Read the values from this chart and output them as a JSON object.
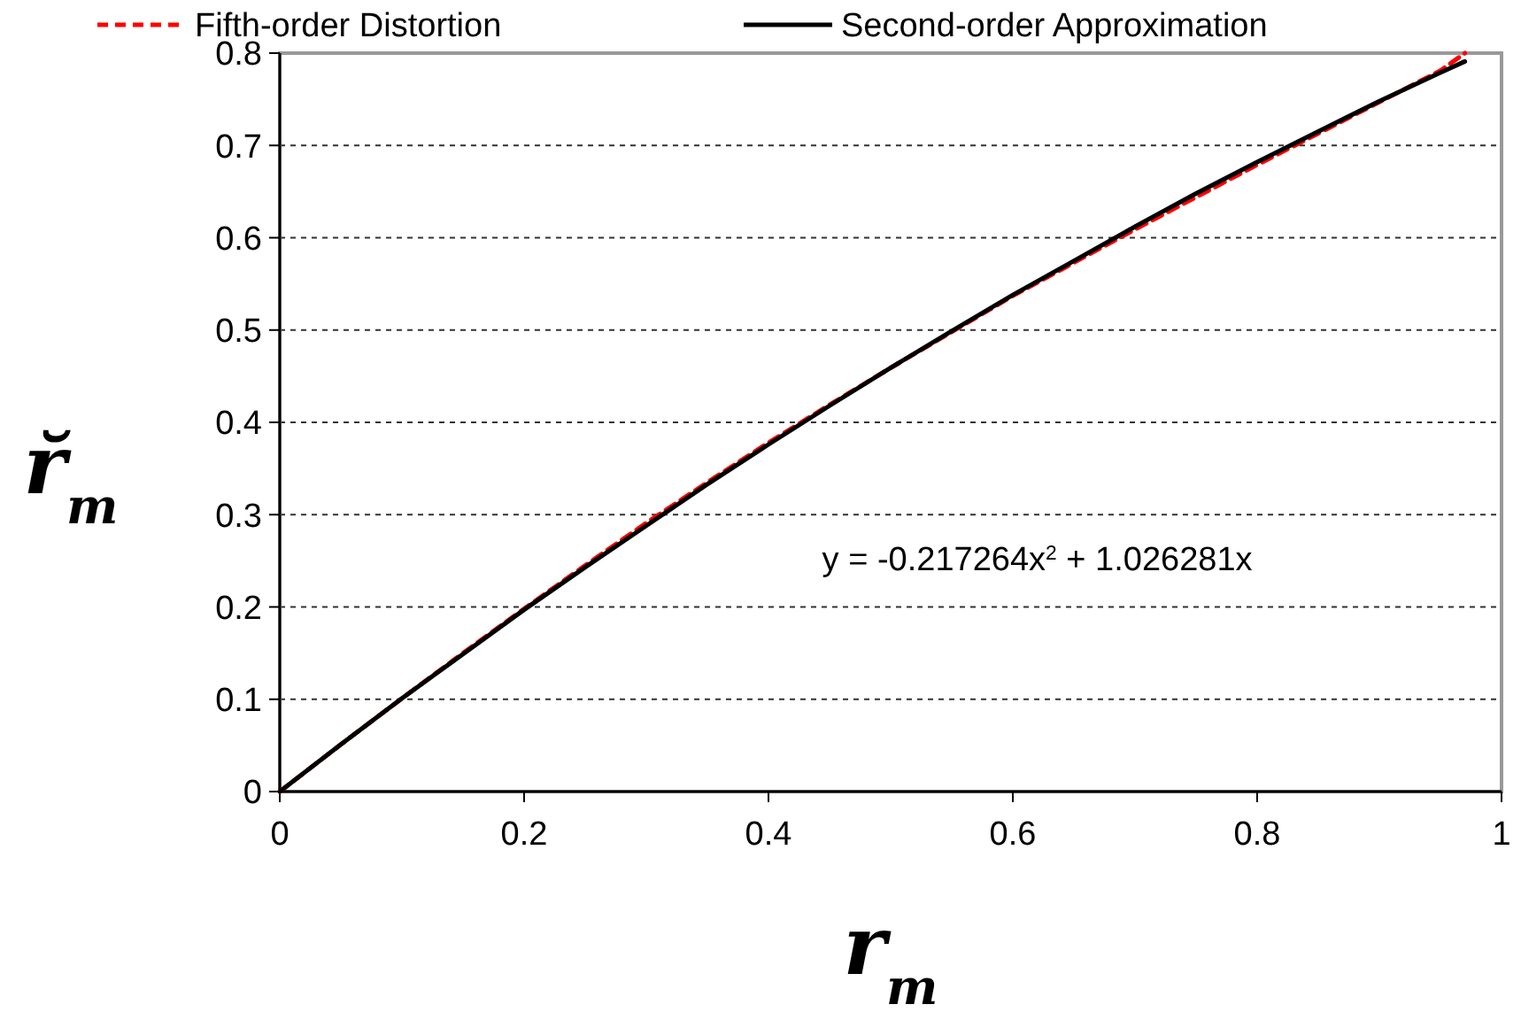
{
  "chart_data": {
    "type": "line",
    "xlabel": "r$_{m}$",
    "ylabel": "r̆$_{m}$",
    "x": [
      0,
      0.05,
      0.1,
      0.15,
      0.2,
      0.25,
      0.3,
      0.35,
      0.4,
      0.45,
      0.5,
      0.55,
      0.6,
      0.65,
      0.7,
      0.75,
      0.8,
      0.85,
      0.9,
      0.95,
      0.97
    ],
    "series": [
      {
        "name": "Fifth-order Distortion",
        "color": "#ff0000",
        "line_style": "dashed",
        "values": [
          0,
          0.051,
          0.101,
          0.15,
          0.198,
          0.245,
          0.291,
          0.335,
          0.378,
          0.419,
          0.459,
          0.498,
          0.537,
          0.573,
          0.609,
          0.644,
          0.679,
          0.713,
          0.747,
          0.781,
          0.8
        ]
      },
      {
        "name": "Second-order  Approximation",
        "color": "#000000",
        "line_style": "solid",
        "values": [
          0,
          0.051,
          0.101,
          0.149,
          0.197,
          0.243,
          0.288,
          0.333,
          0.376,
          0.418,
          0.459,
          0.499,
          0.538,
          0.575,
          0.612,
          0.648,
          0.682,
          0.715,
          0.748,
          0.779,
          0.791
        ]
      }
    ],
    "xlim": [
      0,
      1
    ],
    "ylim": [
      0,
      0.8
    ],
    "xticks": [
      0,
      0.2,
      0.4,
      0.6,
      0.8,
      1
    ],
    "yticks": [
      0,
      0.1,
      0.2,
      0.3,
      0.4,
      0.5,
      0.6,
      0.7,
      0.8
    ],
    "grid": "y",
    "legend": "top",
    "marker": "none",
    "annotations": [
      "y = -0.217264x$^{2}$ + 1.026281x"
    ]
  }
}
